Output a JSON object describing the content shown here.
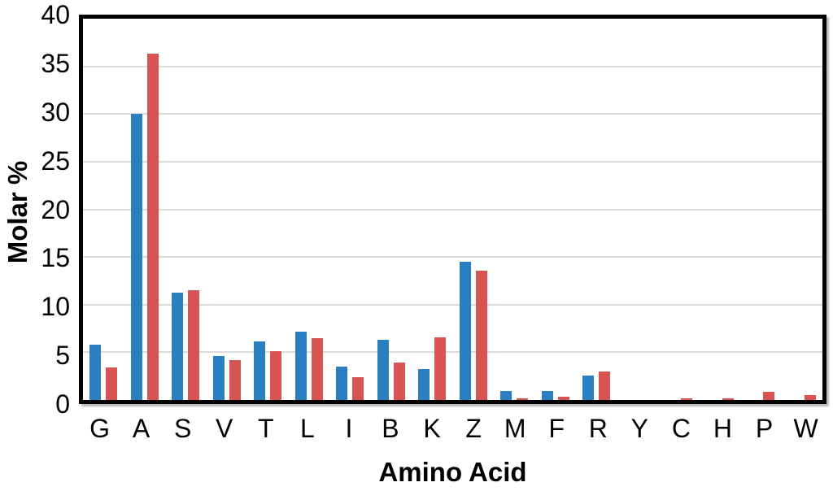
{
  "figure": {
    "background_color": "#ffffff",
    "plot_border_color": "#000000",
    "gridline_color": "#dadada"
  },
  "chart_data": {
    "type": "bar",
    "title": "",
    "xlabel": "Amino Acid",
    "ylabel": "Molar %",
    "categories": [
      "G",
      "A",
      "S",
      "V",
      "T",
      "L",
      "I",
      "B",
      "K",
      "Z",
      "M",
      "F",
      "R",
      "Y",
      "C",
      "H",
      "P",
      "W"
    ],
    "series": [
      {
        "name": "blue-series",
        "color": "#2a7fc1",
        "values": [
          5.8,
          30.0,
          11.3,
          4.6,
          6.1,
          7.2,
          3.5,
          6.3,
          3.2,
          14.5,
          0.9,
          0.9,
          2.6,
          0,
          0,
          0,
          0,
          0
        ]
      },
      {
        "name": "red-series",
        "color": "#d85452",
        "values": [
          3.4,
          36.3,
          11.5,
          4.2,
          5.1,
          6.5,
          2.4,
          3.9,
          6.6,
          13.6,
          0.2,
          0.3,
          3.0,
          0,
          0.2,
          0.2,
          0.85,
          0.5
        ]
      }
    ],
    "ylim": [
      0,
      40
    ],
    "yticks": [
      0,
      5,
      10,
      15,
      20,
      25,
      30,
      35,
      40
    ],
    "grid": "horizontal",
    "legend_position": "none"
  }
}
